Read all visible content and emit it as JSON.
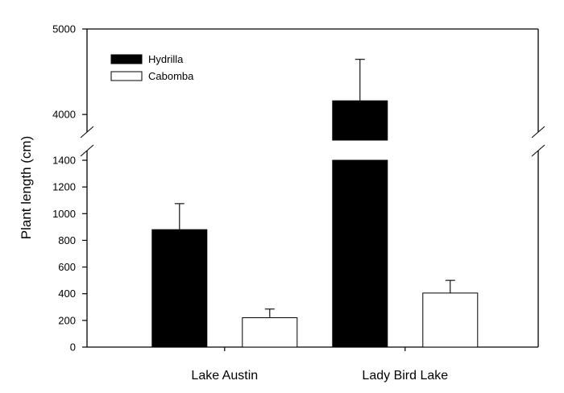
{
  "chart_data": {
    "type": "bar",
    "title": "",
    "xlabel": "",
    "ylabel": "Plant length (cm)",
    "categories": [
      "Lake Austin",
      "Lady Bird Lake"
    ],
    "series": [
      {
        "name": "Hydrilla",
        "values": [
          880,
          4160
        ],
        "errors": [
          195,
          485
        ],
        "fill": "#000000"
      },
      {
        "name": "Cabomba",
        "values": [
          220,
          405
        ],
        "errors": [
          65,
          95
        ],
        "fill": "#ffffff"
      }
    ],
    "y_axis_broken": true,
    "y_lower_segment": {
      "range": [
        0,
        1400
      ],
      "ticks": [
        0,
        200,
        400,
        600,
        800,
        1000,
        1200,
        1400
      ]
    },
    "y_upper_segment": {
      "range": [
        3700,
        5000
      ],
      "ticks": [
        4000,
        5000
      ]
    },
    "legend_position": "top-left",
    "grid": false
  }
}
